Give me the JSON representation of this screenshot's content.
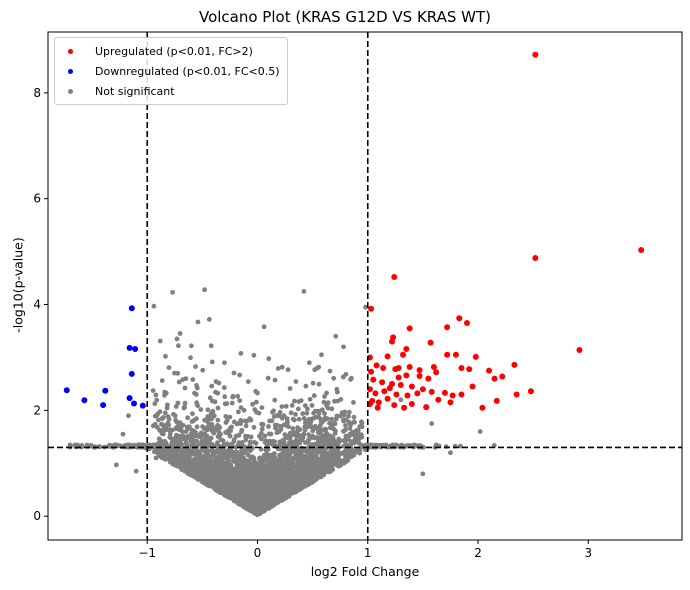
{
  "chart_data": {
    "type": "scatter",
    "title": "Volcano Plot (KRAS G12D VS KRAS WT)",
    "xlabel": "log2 Fold Change",
    "ylabel": "-log10(p-value)",
    "xlim": [
      -1.9,
      3.85
    ],
    "ylim": [
      -0.45,
      9.15
    ],
    "xticks": [
      -1,
      0,
      1,
      2,
      3
    ],
    "yticks": [
      0,
      2,
      4,
      6,
      8
    ],
    "thresholds": {
      "vertical": [
        -1,
        1
      ],
      "horizontal": 1.3
    },
    "legend": {
      "position": "top-left",
      "entries": [
        {
          "label": "Upregulated (p<0.01, FC>2)",
          "color": "#ff0000"
        },
        {
          "label": "Downregulated (p<0.01, FC<0.5)",
          "color": "#0000ff"
        },
        {
          "label": "Not significant",
          "color": "#808080"
        }
      ]
    },
    "series": [
      {
        "name": "Upregulated (p<0.01, FC>2)",
        "color": "#ff0000",
        "points": [
          [
            2.52,
            8.72
          ],
          [
            3.48,
            5.03
          ],
          [
            2.52,
            4.88
          ],
          [
            1.24,
            4.52
          ],
          [
            1.03,
            3.92
          ],
          [
            1.83,
            3.74
          ],
          [
            1.72,
            3.57
          ],
          [
            1.38,
            3.55
          ],
          [
            1.9,
            3.65
          ],
          [
            1.22,
            3.3
          ],
          [
            1.23,
            3.38
          ],
          [
            1.35,
            3.16
          ],
          [
            1.57,
            3.28
          ],
          [
            1.8,
            3.05
          ],
          [
            1.72,
            3.05
          ],
          [
            1.32,
            3.05
          ],
          [
            1.18,
            3.02
          ],
          [
            1.02,
            3.0
          ],
          [
            1.98,
            3.01
          ],
          [
            2.92,
            3.14
          ],
          [
            1.08,
            2.85
          ],
          [
            1.14,
            2.8
          ],
          [
            1.25,
            2.78
          ],
          [
            1.28,
            2.8
          ],
          [
            1.38,
            2.82
          ],
          [
            1.47,
            2.76
          ],
          [
            1.6,
            2.82
          ],
          [
            1.85,
            2.8
          ],
          [
            1.92,
            2.78
          ],
          [
            2.1,
            2.75
          ],
          [
            2.33,
            2.86
          ],
          [
            1.03,
            2.73
          ],
          [
            1.05,
            2.58
          ],
          [
            1.13,
            2.53
          ],
          [
            1.28,
            2.62
          ],
          [
            1.35,
            2.66
          ],
          [
            1.47,
            2.65
          ],
          [
            1.55,
            2.6
          ],
          [
            1.62,
            2.72
          ],
          [
            1.22,
            2.5
          ],
          [
            1.3,
            2.48
          ],
          [
            1.4,
            2.45
          ],
          [
            1.5,
            2.4
          ],
          [
            1.58,
            2.35
          ],
          [
            1.02,
            2.4
          ],
          [
            1.07,
            2.32
          ],
          [
            1.15,
            2.36
          ],
          [
            1.2,
            2.42
          ],
          [
            1.26,
            2.3
          ],
          [
            1.36,
            2.28
          ],
          [
            1.45,
            2.32
          ],
          [
            1.7,
            2.33
          ],
          [
            1.77,
            2.28
          ],
          [
            2.15,
            2.6
          ],
          [
            2.22,
            2.64
          ],
          [
            2.35,
            2.3
          ],
          [
            2.48,
            2.36
          ],
          [
            1.04,
            2.18
          ],
          [
            1.1,
            2.15
          ],
          [
            1.18,
            2.22
          ],
          [
            1.24,
            2.1
          ],
          [
            1.33,
            2.05
          ],
          [
            1.4,
            2.12
          ],
          [
            1.53,
            2.06
          ],
          [
            1.64,
            2.2
          ],
          [
            1.75,
            2.15
          ],
          [
            2.17,
            2.18
          ],
          [
            2.04,
            2.05
          ],
          [
            1.09,
            2.05
          ],
          [
            1.02,
            2.12
          ],
          [
            1.85,
            2.3
          ],
          [
            1.95,
            2.45
          ]
        ]
      },
      {
        "name": "Downregulated (p<0.01, FC<0.5)",
        "color": "#0000ff",
        "points": [
          [
            -1.14,
            3.93
          ],
          [
            -1.16,
            3.18
          ],
          [
            -1.11,
            3.16
          ],
          [
            -1.14,
            2.69
          ],
          [
            -1.73,
            2.38
          ],
          [
            -1.38,
            2.37
          ],
          [
            -1.57,
            2.19
          ],
          [
            -1.16,
            2.23
          ],
          [
            -1.4,
            2.1
          ],
          [
            -1.12,
            2.13
          ],
          [
            -1.04,
            2.09
          ]
        ]
      },
      {
        "name": "Not significant",
        "color": "#808080",
        "count": 4200,
        "x_range": [
          -1.7,
          2.9
        ],
        "y_range": [
          0,
          4.3
        ],
        "outliers": [
          [
            -0.77,
            4.23
          ],
          [
            -0.48,
            4.28
          ],
          [
            -0.54,
            3.67
          ],
          [
            0.06,
            3.58
          ],
          [
            -0.73,
            3.35
          ],
          [
            -0.6,
            3.22
          ],
          [
            0.71,
            3.4
          ],
          [
            0.78,
            3.2
          ],
          [
            0.98,
            3.95
          ],
          [
            -0.42,
            3.22
          ],
          [
            0.58,
            3.05
          ],
          [
            -1.17,
            1.9
          ],
          [
            -1.22,
            1.55
          ],
          [
            -1.28,
            0.97
          ],
          [
            -1.1,
            0.85
          ],
          [
            1.5,
            0.8
          ],
          [
            1.75,
            1.2
          ],
          [
            2.02,
            1.6
          ],
          [
            1.58,
            1.75
          ],
          [
            -0.92,
            1.1
          ],
          [
            1.3,
            2.2
          ],
          [
            -0.65,
            2.6
          ],
          [
            0.47,
            2.9
          ],
          [
            -0.3,
            2.9
          ]
        ]
      }
    ]
  }
}
